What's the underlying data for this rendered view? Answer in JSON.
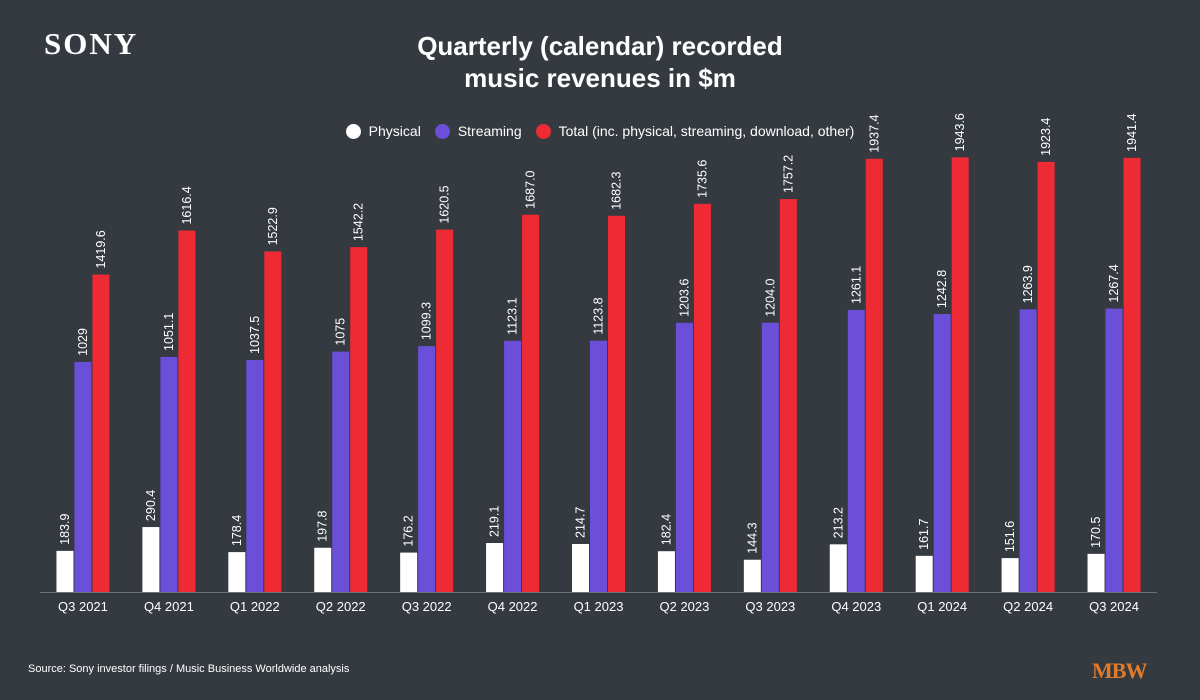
{
  "header": {
    "logo": "SONY",
    "title_line1": "Quarterly (calendar) recorded",
    "title_line2": "music revenues in $m"
  },
  "legend": [
    {
      "label": "Physical",
      "color": "#ffffff"
    },
    {
      "label": "Streaming",
      "color": "#6b4fd8"
    },
    {
      "label": "Total (inc. physical, streaming, download, other)",
      "color": "#ee2b35"
    }
  ],
  "chart_data": {
    "type": "bar",
    "categories": [
      "Q3 2021",
      "Q4 2021",
      "Q1 2022",
      "Q2 2022",
      "Q3 2022",
      "Q4 2022",
      "Q1 2023",
      "Q2 2023",
      "Q3 2023",
      "Q4 2023",
      "Q1 2024",
      "Q2 2024",
      "Q3 2024"
    ],
    "series": [
      {
        "name": "Physical",
        "color": "#ffffff",
        "values": [
          183.9,
          290.4,
          178.4,
          197.8,
          176.2,
          219.1,
          214.7,
          182.4,
          144.3,
          213.2,
          161.7,
          151.6,
          170.5
        ],
        "labels": [
          "183.9",
          "290.4",
          "178.4",
          "197.8",
          "176.2",
          "219.1",
          "214.7",
          "182.4",
          "144.3",
          "213.2",
          "161.7",
          "151.6",
          "170.5"
        ]
      },
      {
        "name": "Streaming",
        "color": "#6b4fd8",
        "values": [
          1029,
          1051.1,
          1037.5,
          1075,
          1099.3,
          1123.1,
          1123.8,
          1203.6,
          1204.0,
          1261.1,
          1242.8,
          1263.9,
          1267.4
        ],
        "labels": [
          "1029",
          "1051.1",
          "1037.5",
          "1075",
          "1099.3",
          "1123.1",
          "1123.8",
          "1203.6",
          "1204.0",
          "1261.1",
          "1242.8",
          "1263.9",
          "1267.4"
        ]
      },
      {
        "name": "Total (inc. physical, streaming, download, other)",
        "color": "#ee2b35",
        "values": [
          1419.6,
          1616.4,
          1522.9,
          1542.2,
          1620.5,
          1687.0,
          1682.3,
          1735.6,
          1757.2,
          1937.4,
          1943.6,
          1923.4,
          1941.4
        ],
        "labels": [
          "1419.6",
          "1616.4",
          "1522.9",
          "1542.2",
          "1620.5",
          "1687.0",
          "1682.3",
          "1735.6",
          "1757.2",
          "1937.4",
          "1943.6",
          "1923.4",
          "1941.4"
        ]
      }
    ],
    "ylim": [
      0,
      2200
    ],
    "grid": false,
    "legend_position": "top-center"
  },
  "footer": {
    "source": "Source: Sony investor filings / Music Business Worldwide analysis",
    "mbw_logo": "MBW"
  }
}
